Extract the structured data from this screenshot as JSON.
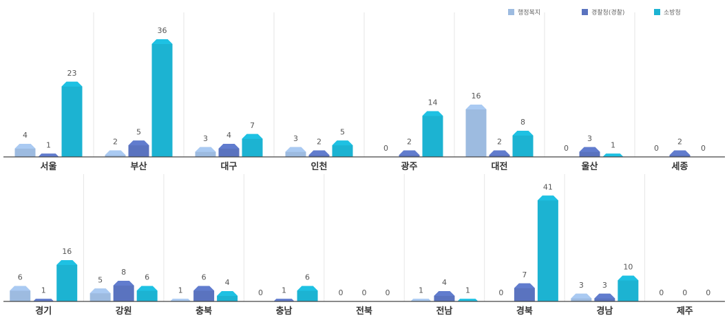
{
  "colors": {
    "series0": "#9DBBE0",
    "series1": "#5A73BF",
    "series2": "#1CB3D2",
    "axis": "#444444",
    "divider": "#e6e6e6"
  },
  "legend": {
    "placement": "top-right",
    "entries": [
      "행정복지",
      "경찰청(경찰)",
      "소방청"
    ]
  },
  "chart_data": [
    {
      "type": "bar",
      "categories": [
        "서울",
        "부산",
        "대구",
        "인천",
        "광주",
        "대전",
        "울산",
        "세종"
      ],
      "series": [
        {
          "name": "행정복지",
          "values": [
            4,
            2,
            3,
            3,
            0,
            16,
            0,
            0
          ]
        },
        {
          "name": "경찰청(경찰)",
          "values": [
            1,
            5,
            4,
            2,
            2,
            2,
            3,
            2
          ]
        },
        {
          "name": "소방청",
          "values": [
            23,
            36,
            7,
            5,
            14,
            8,
            1,
            0
          ]
        }
      ],
      "ylim": [
        0,
        40
      ],
      "grid": false
    },
    {
      "type": "bar",
      "categories": [
        "경기",
        "강원",
        "충북",
        "충남",
        "전북",
        "전남",
        "경북",
        "경남",
        "제주"
      ],
      "series": [
        {
          "name": "행정복지",
          "values": [
            6,
            5,
            1,
            0,
            0,
            1,
            0,
            3,
            0
          ]
        },
        {
          "name": "경찰청(경찰)",
          "values": [
            1,
            8,
            6,
            1,
            0,
            4,
            7,
            3,
            0
          ]
        },
        {
          "name": "소방청",
          "values": [
            16,
            6,
            4,
            6,
            0,
            1,
            41,
            10,
            0
          ]
        }
      ],
      "ylim": [
        0,
        44
      ],
      "grid": false
    }
  ]
}
